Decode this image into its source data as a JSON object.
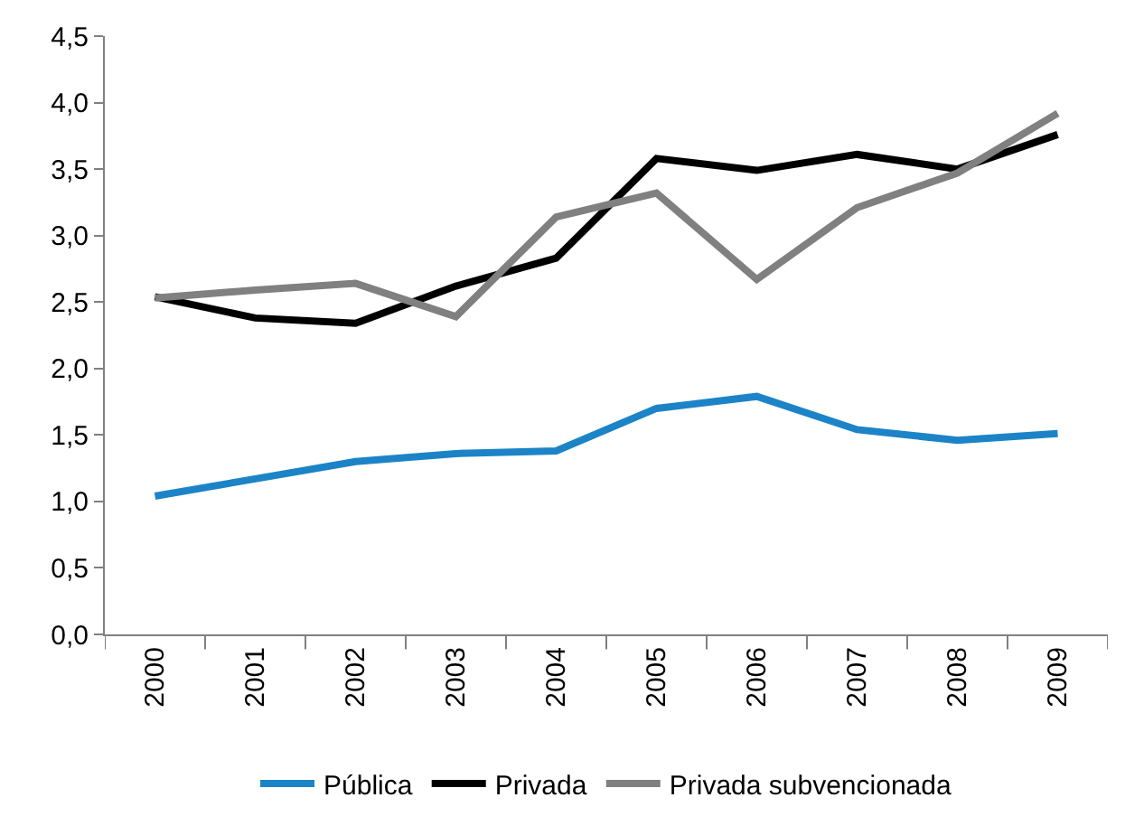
{
  "chart_data": {
    "type": "line",
    "categories": [
      "2000",
      "2001",
      "2002",
      "2003",
      "2004",
      "2005",
      "2006",
      "2007",
      "2008",
      "2009"
    ],
    "series": [
      {
        "name": "Pública",
        "color": "#1c84c6",
        "values": [
          1.04,
          1.17,
          1.3,
          1.36,
          1.38,
          1.7,
          1.79,
          1.54,
          1.46,
          1.51
        ]
      },
      {
        "name": "Privada",
        "color": "#000000",
        "values": [
          2.54,
          2.38,
          2.34,
          2.62,
          2.83,
          3.58,
          3.49,
          3.61,
          3.5,
          3.76
        ]
      },
      {
        "name": "Privada subvencionada",
        "color": "#808080",
        "values": [
          2.53,
          2.59,
          2.64,
          2.39,
          3.14,
          3.32,
          2.67,
          3.21,
          3.47,
          3.92
        ]
      }
    ],
    "ylim": [
      0,
      4.5
    ],
    "yticks": [
      {
        "value": 0,
        "label": "0,0"
      },
      {
        "value": 0.5,
        "label": "0,5"
      },
      {
        "value": 1,
        "label": "1,0"
      },
      {
        "value": 1.5,
        "label": "1,5"
      },
      {
        "value": 2,
        "label": "2,0"
      },
      {
        "value": 2.5,
        "label": "2,5"
      },
      {
        "value": 3,
        "label": "3,0"
      },
      {
        "value": 3.5,
        "label": "3,5"
      },
      {
        "value": 4,
        "label": "4,0"
      },
      {
        "value": 4.5,
        "label": "4,5"
      }
    ],
    "grid": false,
    "legend": "bottom",
    "marker": "none",
    "line_style": "solid"
  }
}
